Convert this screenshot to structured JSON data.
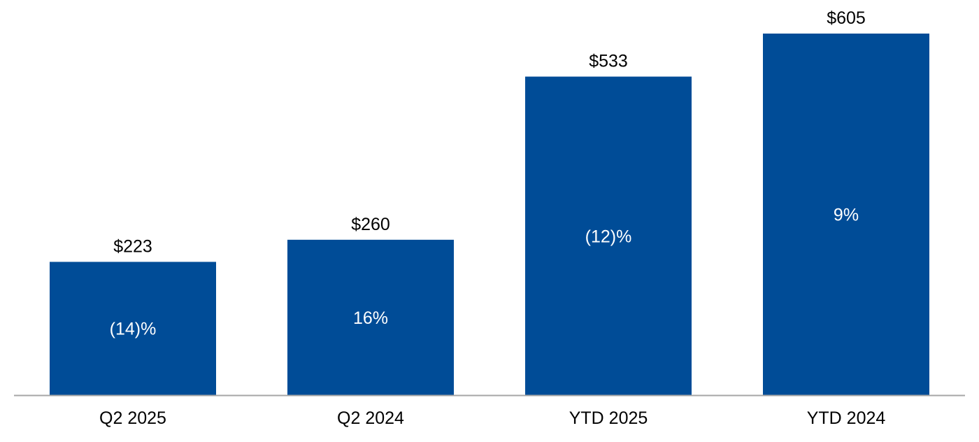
{
  "chart_data": {
    "type": "bar",
    "categories": [
      "Q2 2025",
      "Q2 2024",
      "YTD 2025",
      "YTD 2024"
    ],
    "values": [
      223,
      260,
      533,
      605
    ],
    "value_labels": [
      "$223",
      "$260",
      "$533",
      "$605"
    ],
    "change_labels": [
      "(14)%",
      "16%",
      "(12)%",
      "9%"
    ],
    "ylim": [
      0,
      605
    ],
    "grid": false,
    "legend": "none"
  },
  "colors": {
    "bar": "#004c97",
    "baseline": "#a6a6a6",
    "value_text": "#000000",
    "change_text": "#ffffff"
  }
}
